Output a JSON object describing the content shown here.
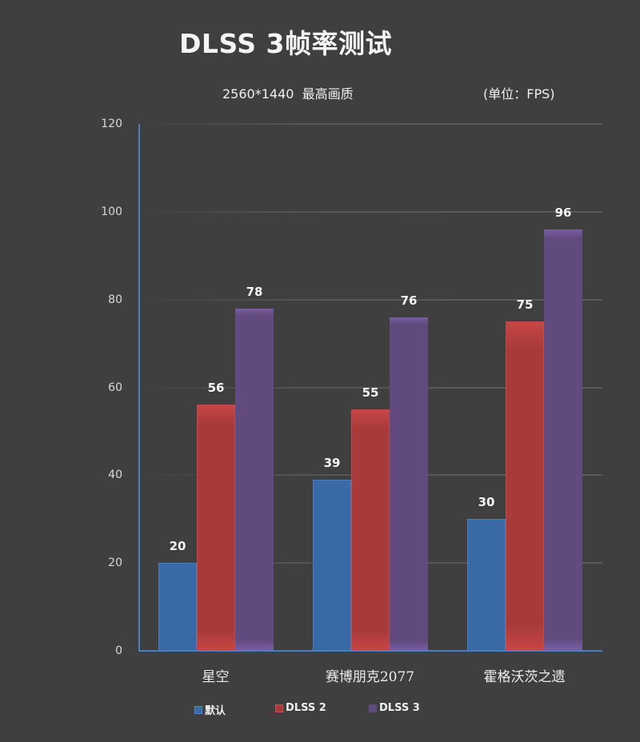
{
  "title": "DLSS 3帧率测试",
  "subtitle": "2560*1440  最高画质",
  "unit": "(单位：FPS)",
  "colors": {
    "background": "#3f3f3f",
    "axis": "#4a7ebf",
    "series": [
      "#3a6aa6",
      "#a83b3a",
      "#614b7e"
    ]
  },
  "y_ticks": [
    "0",
    "20",
    "40",
    "60",
    "80",
    "100",
    "120"
  ],
  "legend": [
    {
      "label": "默认",
      "color": "#3a6aa6"
    },
    {
      "label": "DLSS 2",
      "color": "#a83b3a"
    },
    {
      "label": "DLSS 3",
      "color": "#614b7e"
    }
  ],
  "chart_data": {
    "type": "bar",
    "title": "DLSS 3帧率测试",
    "subtitle": "2560*1440  最高画质",
    "unit_note": "(单位：FPS)",
    "categories": [
      "星空",
      "赛博朋克2077",
      "霍格沃茨之遗"
    ],
    "series": [
      {
        "name": "默认",
        "values": [
          20,
          39,
          30
        ]
      },
      {
        "name": "DLSS 2",
        "values": [
          56,
          55,
          75
        ]
      },
      {
        "name": "DLSS 3",
        "values": [
          78,
          76,
          96
        ]
      }
    ],
    "xlabel": "",
    "ylabel": "",
    "ylim": [
      0,
      120
    ],
    "yticks": [
      0,
      20,
      40,
      60,
      80,
      100,
      120
    ],
    "grid": true,
    "legend_position": "bottom",
    "data_labels": true
  }
}
